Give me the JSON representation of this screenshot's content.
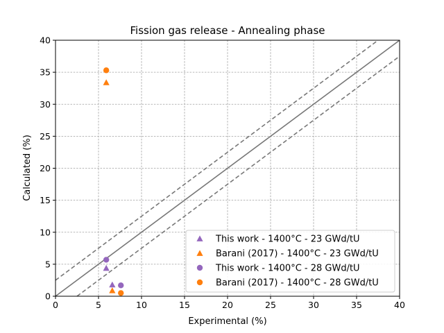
{
  "chart_data": {
    "type": "scatter",
    "title": "Fission gas release - Annealing phase",
    "xlabel": "Experimental (%)",
    "ylabel": "Calculated (%)",
    "xlim": [
      0,
      40
    ],
    "ylim": [
      0,
      40
    ],
    "xticks": [
      0,
      5,
      10,
      15,
      20,
      25,
      30,
      35,
      40
    ],
    "yticks": [
      0,
      5,
      10,
      15,
      20,
      25,
      30,
      35,
      40
    ],
    "grid": true,
    "legend_position": "lower-right",
    "reference_lines": [
      {
        "style": "solid",
        "color": "#777777",
        "points": [
          [
            0,
            0
          ],
          [
            40,
            40
          ]
        ]
      },
      {
        "style": "dashed",
        "color": "#777777",
        "points": [
          [
            0,
            2.5
          ],
          [
            37.5,
            40
          ]
        ]
      },
      {
        "style": "dashed",
        "color": "#777777",
        "points": [
          [
            2.5,
            0
          ],
          [
            40,
            37.5
          ]
        ]
      }
    ],
    "series": [
      {
        "name": "This work - 1400°C - 23 GWd/tU",
        "marker": "triangle",
        "color": "#9467bd",
        "points": [
          [
            5.9,
            4.4
          ],
          [
            6.6,
            1.8
          ]
        ]
      },
      {
        "name": "Barani (2017) - 1400°C - 23 GWd/tU",
        "marker": "triangle",
        "color": "#ff7f0e",
        "points": [
          [
            5.9,
            33.4
          ],
          [
            6.6,
            0.9
          ]
        ]
      },
      {
        "name": "This work - 1400°C - 28 GWd/tU",
        "marker": "circle",
        "color": "#9467bd",
        "points": [
          [
            5.9,
            5.7
          ],
          [
            7.6,
            1.7
          ]
        ]
      },
      {
        "name": "Barani (2017) - 1400°C - 28 GWd/tU",
        "marker": "circle",
        "color": "#ff7f0e",
        "points": [
          [
            5.9,
            35.3
          ],
          [
            7.6,
            0.5
          ]
        ]
      }
    ]
  }
}
